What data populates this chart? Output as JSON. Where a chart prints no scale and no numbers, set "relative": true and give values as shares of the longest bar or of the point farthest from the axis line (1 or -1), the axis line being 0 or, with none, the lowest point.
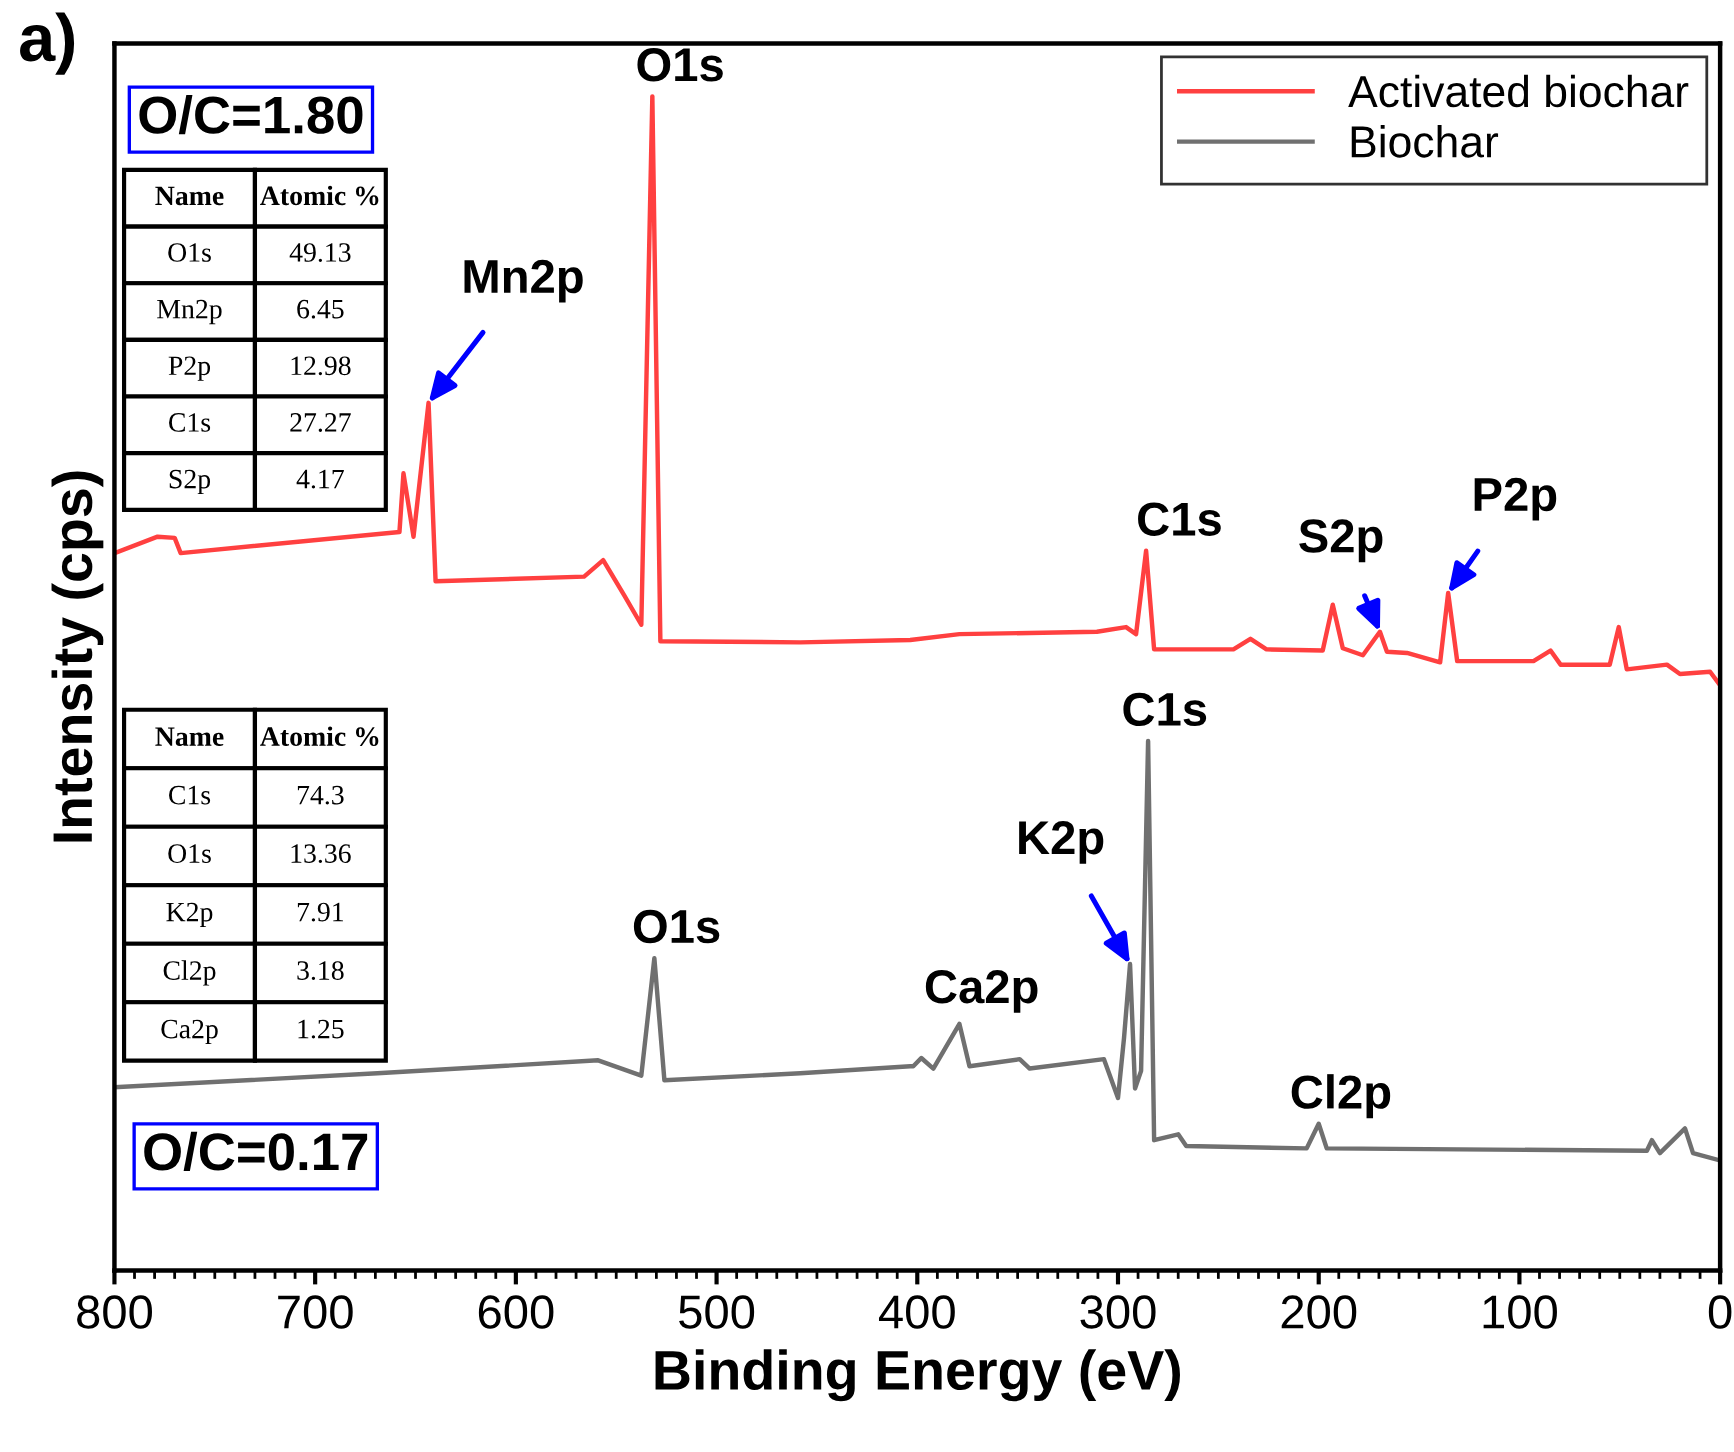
{
  "chart_data": {
    "type": "line",
    "xlabel": "Binding Energy (eV)",
    "ylabel": "Intensity (cps)",
    "relative": true,
    "xlim": [
      800,
      0
    ],
    "xticks": [
      800,
      700,
      600,
      500,
      400,
      300,
      200,
      100,
      0
    ],
    "legend": "top right",
    "grid": false,
    "tick_labels": "x",
    "series": [
      {
        "name": "Activated biochar",
        "color": "#ff4040",
        "x": [
          800,
          778.5,
          770,
          767,
          658,
          656,
          651,
          643.5,
          640,
          566,
          556.5,
          546,
          537.5,
          532,
          528,
          458.3,
          403.5,
          379,
          310.5,
          296,
          291,
          286,
          282,
          242.5,
          234,
          226,
          198,
          193,
          188,
          178,
          169.5,
          166,
          156,
          139.5,
          135.5,
          131,
          93,
          84.5,
          79.5,
          55,
          50.5,
          46.5,
          26.5,
          20,
          5,
          0.7
        ],
        "values": [
          0.611,
          0.625,
          0.624,
          0.611,
          0.629,
          0.679,
          0.625,
          0.739,
          0.587,
          0.591,
          0.605,
          0.575,
          0.55,
          1.0,
          0.536,
          0.535,
          0.537,
          0.542,
          0.544,
          0.548,
          0.542,
          0.613,
          0.529,
          0.529,
          0.538,
          0.529,
          0.528,
          0.567,
          0.53,
          0.524,
          0.544,
          0.527,
          0.526,
          0.518,
          0.577,
          0.519,
          0.519,
          0.528,
          0.516,
          0.516,
          0.548,
          0.512,
          0.516,
          0.508,
          0.51,
          0.5
        ]
      },
      {
        "name": "Biochar",
        "color": "#707070",
        "x": [
          800,
          669,
          559,
          537.5,
          531,
          526,
          458.3,
          403.5,
          402,
          398,
          392,
          379,
          374,
          349,
          344,
          307,
          300,
          297,
          294,
          291.5,
          288.5,
          285,
          282,
          270,
          266,
          206,
          200,
          196,
          36.5,
          34,
          30,
          17.5,
          13.5,
          0.7
        ],
        "values": [
          0.156,
          0.168,
          0.179,
          0.166,
          0.266,
          0.162,
          0.168,
          0.174,
          0.174,
          0.181,
          0.172,
          0.21,
          0.174,
          0.18,
          0.172,
          0.18,
          0.147,
          0.198,
          0.261,
          0.155,
          0.17,
          0.451,
          0.111,
          0.116,
          0.106,
          0.104,
          0.125,
          0.104,
          0.102,
          0.111,
          0.1,
          0.121,
          0.1,
          0.094
        ]
      }
    ],
    "annotations": [
      "a)",
      "O/C=1.80",
      "Name\tAtomic %\nO1s\t49.13\nMn2p\t6.45\nP2p\t12.98\nC1s\t27.27\nS2p\t4.17",
      "O/C=0.17",
      "Name\tAtomic %\nC1s\t74.3\nO1s\t13.36\nK2p\t7.91\nCl2p\t3.18\nCa2p\t1.25",
      {
        "text": "O1s",
        "x": 532,
        "y": 1.0
      },
      {
        "text": "Mn2p",
        "x": 643.5,
        "y": 0.739
      },
      {
        "text": "C1s",
        "x": 286,
        "y": 0.613
      },
      {
        "text": "S2p",
        "x": 169.5,
        "y": 0.544
      },
      {
        "text": "P2p",
        "x": 135.5,
        "y": 0.577
      },
      {
        "text": "O1s",
        "x": 531,
        "y": 0.266
      },
      {
        "text": "Ca2p",
        "x": 379,
        "y": 0.21
      },
      {
        "text": "K2p",
        "x": 294,
        "y": 0.261
      },
      {
        "text": "C1s",
        "x": 285,
        "y": 0.451
      },
      {
        "text": "Cl2p",
        "x": 200,
        "y": 0.125
      }
    ]
  }
}
